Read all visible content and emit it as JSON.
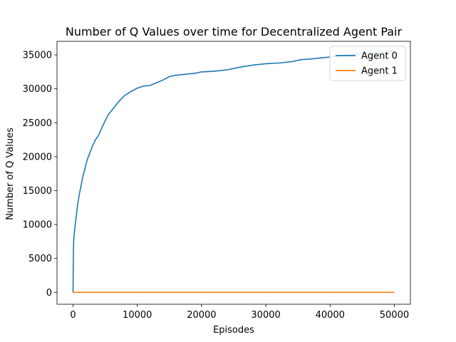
{
  "chart_data": {
    "type": "line",
    "title": "Number of Q Values over time for Decentralized Agent Pair",
    "xlabel": "Episodes",
    "ylabel": "Number of Q Values",
    "xlim": [
      -2500,
      52500
    ],
    "ylim": [
      -1750,
      37000
    ],
    "xticks": [
      0,
      10000,
      20000,
      30000,
      40000,
      50000
    ],
    "yticks": [
      0,
      5000,
      10000,
      15000,
      20000,
      25000,
      30000,
      35000
    ],
    "xtick_labels": [
      "0",
      "10000",
      "20000",
      "30000",
      "40000",
      "50000"
    ],
    "ytick_labels": [
      "0",
      "5000",
      "10000",
      "15000",
      "20000",
      "25000",
      "30000",
      "35000"
    ],
    "grid": false,
    "legend": "top-right",
    "series": [
      {
        "name": "Agent 0",
        "color": "#1f77b4",
        "x": [
          0,
          50,
          100,
          200,
          300,
          400,
          500,
          600,
          700,
          800,
          900,
          1000,
          1200,
          1500,
          1800,
          2000,
          2300,
          2600,
          3000,
          3500,
          4000,
          4500,
          5000,
          5500,
          6000,
          7000,
          8000,
          9000,
          10000,
          11000,
          12000,
          13000,
          14000,
          15000,
          16000,
          17000,
          18000,
          19000,
          20000,
          22000,
          24000,
          26000,
          28000,
          30000,
          32000,
          34000,
          35500,
          37000,
          40000,
          42000,
          44000,
          46000,
          48000,
          50000
        ],
        "y": [
          0,
          6000,
          7500,
          8800,
          9700,
          10500,
          11200,
          12100,
          12900,
          13500,
          14000,
          14600,
          15500,
          17000,
          18000,
          18900,
          19800,
          20500,
          21500,
          22500,
          23200,
          24300,
          25300,
          26200,
          26800,
          28000,
          29000,
          29600,
          30100,
          30400,
          30500,
          30900,
          31300,
          31800,
          32000,
          32100,
          32200,
          32300,
          32500,
          32600,
          32800,
          33200,
          33500,
          33700,
          33800,
          34000,
          34300,
          34400,
          34700,
          34900,
          35100,
          35250,
          35400,
          35600
        ]
      },
      {
        "name": "Agent 1",
        "color": "#ff7f0e",
        "x": [
          0,
          50000
        ],
        "y": [
          0,
          0
        ]
      }
    ]
  }
}
